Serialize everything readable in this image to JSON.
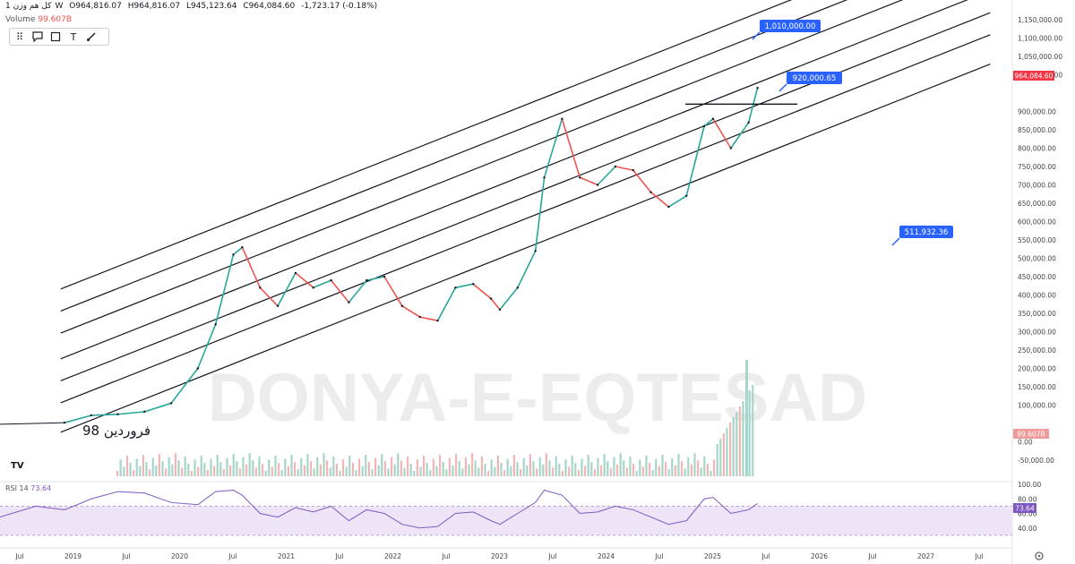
{
  "header": {
    "symbol_name": "کل هم وزن",
    "interval": "1W",
    "open": "O964,816.07",
    "high": "H964,816.07",
    "low": "L945,123.64",
    "close": "C964,084.60",
    "change": "-1,723.17 (-0.18%)",
    "volume_label": "Volume",
    "volume_value": "99.607B"
  },
  "toolbar": {
    "icons": [
      "dots-handle-icon",
      "callout-icon",
      "rectangle-icon",
      "text-icon",
      "brush-icon"
    ]
  },
  "watermark": {
    "text": "DONYA-E-EQTESAD"
  },
  "annotations": {
    "target_upper": "1,010,000.00",
    "target_mid": "920,000.65",
    "target_lower": "511,932.36",
    "hand_label": "فروردین 98"
  },
  "price_axis": {
    "ticks": [
      "1,150,000.00",
      "1,100,000.00",
      "1,050,000.00",
      "1,000,000.00",
      "964,084.60",
      "900,000.00",
      "850,000.00",
      "800,000.00",
      "750,000.00",
      "700,000.00",
      "650,000.00",
      "600,000.00",
      "550,000.00",
      "500,000.00",
      "450,000.00",
      "400,000.00",
      "350,000.00",
      "300,000.00",
      "250,000.00",
      "200,000.00",
      "150,000.00",
      "100,000.00",
      "99.607B",
      "0.00",
      "-50,000.00"
    ],
    "last_price": "964,084.60",
    "volume_badge": "99.607B"
  },
  "rsi": {
    "label": "RSI 14",
    "value": "73.64",
    "ticks": [
      "100.00",
      "80.00",
      "60.00",
      "40.00"
    ]
  },
  "time_axis": {
    "labels": [
      "Jul",
      "2019",
      "Jul",
      "2020",
      "Jul",
      "2021",
      "Jul",
      "2022",
      "Jul",
      "2023",
      "Jul",
      "2024",
      "Jul",
      "2025",
      "Jul",
      "2026",
      "Jul",
      "2027",
      "Jul"
    ]
  },
  "colors": {
    "up": "#26a69a",
    "down": "#ef5350",
    "line": "#131722",
    "badge_blue": "#2962ff",
    "price_red": "#f23645",
    "rsi_band": "#ede4f7",
    "rsi_line": "#7e57c2"
  },
  "chart_data": {
    "type": "line",
    "title": "",
    "xlabel": "",
    "ylabel": "",
    "ylim": [
      -50000,
      1150000
    ],
    "x": [
      "2018-12",
      "2019-03",
      "2019-06",
      "2019-09",
      "2019-12",
      "2020-03",
      "2020-05",
      "2020-07",
      "2020-08",
      "2020-10",
      "2020-12",
      "2021-02",
      "2021-04",
      "2021-06",
      "2021-08",
      "2021-10",
      "2021-12",
      "2022-02",
      "2022-04",
      "2022-06",
      "2022-08",
      "2022-10",
      "2022-12",
      "2023-01",
      "2023-03",
      "2023-05",
      "2023-06",
      "2023-08",
      "2023-10",
      "2023-12",
      "2024-02",
      "2024-04",
      "2024-06",
      "2024-08",
      "2024-10",
      "2024-12",
      "2025-01",
      "2025-03",
      "2025-05",
      "2025-06"
    ],
    "series": [
      {
        "values": [
          52000,
          72000,
          75000,
          82000,
          105000,
          200000,
          320000,
          510000,
          530000,
          420000,
          370000,
          460000,
          420000,
          440000,
          380000,
          440000,
          450000,
          370000,
          340000,
          330000,
          420000,
          430000,
          390000,
          360000,
          420000,
          520000,
          720000,
          880000,
          720000,
          700000,
          750000,
          740000,
          680000,
          640000,
          670000,
          860000,
          880000,
          800000,
          870000,
          964084.6
        ]
      }
    ],
    "channel_lines": {
      "slope_per_year": 115000,
      "lines_value_at_2019": [
        430000,
        370000,
        310000,
        240000,
        180000,
        120000,
        40000
      ]
    },
    "horizontal_level": 920000,
    "rsi_ylim": [
      20,
      100
    ],
    "rsi_band": [
      30,
      70
    ],
    "rsi_values": [
      65,
      80,
      90,
      88,
      75,
      72,
      90,
      92,
      85,
      60,
      55,
      68,
      62,
      70,
      50,
      65,
      60,
      45,
      40,
      42,
      60,
      62,
      50,
      45,
      60,
      75,
      92,
      85,
      60,
      62,
      70,
      65,
      55,
      45,
      50,
      80,
      82,
      60,
      65,
      73.64
    ]
  }
}
